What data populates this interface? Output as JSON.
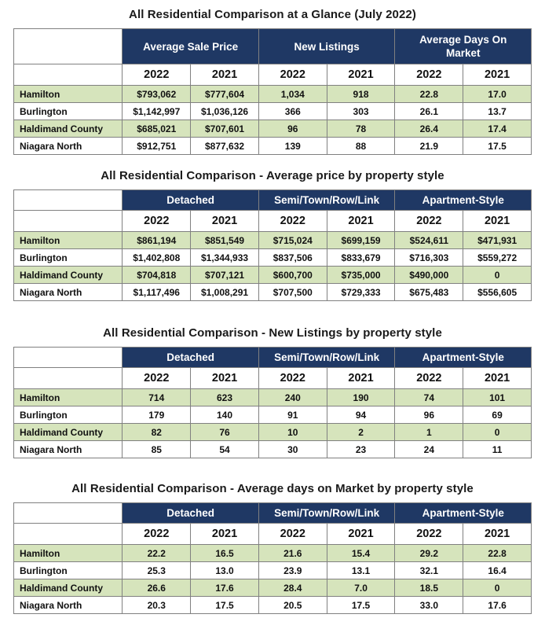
{
  "colors": {
    "header_bg": "#1f3864",
    "header_text": "#ffffff",
    "row_highlight_bg": "#d6e4bc",
    "row_plain_bg": "#ffffff",
    "border": "#808080"
  },
  "tables": [
    {
      "title": "All Residential Comparison at a Glance (July 2022)",
      "groups": [
        "Average Sale Price",
        "New Listings",
        "Average Days On Market"
      ],
      "years": [
        "2022",
        "2021",
        "2022",
        "2021",
        "2022",
        "2021"
      ],
      "rows": [
        {
          "label": "Hamilton",
          "values": [
            "$793,062",
            "$777,604",
            "1,034",
            "918",
            "22.8",
            "17.0"
          ]
        },
        {
          "label": "Burlington",
          "values": [
            "$1,142,997",
            "$1,036,126",
            "366",
            "303",
            "26.1",
            "13.7"
          ]
        },
        {
          "label": "Haldimand County",
          "values": [
            "$685,021",
            "$707,601",
            "96",
            "78",
            "26.4",
            "17.4"
          ]
        },
        {
          "label": "Niagara North",
          "values": [
            "$912,751",
            "$877,632",
            "139",
            "88",
            "21.9",
            "17.5"
          ]
        }
      ]
    },
    {
      "title": "All Residential Comparison - Average price by property style",
      "groups": [
        "Detached",
        "Semi/Town/Row/Link",
        "Apartment-Style"
      ],
      "years": [
        "2022",
        "2021",
        "2022",
        "2021",
        "2022",
        "2021"
      ],
      "rows": [
        {
          "label": "Hamilton",
          "values": [
            "$861,194",
            "$851,549",
            "$715,024",
            "$699,159",
            "$524,611",
            "$471,931"
          ]
        },
        {
          "label": "Burlington",
          "values": [
            "$1,402,808",
            "$1,344,933",
            "$837,506",
            "$833,679",
            "$716,303",
            "$559,272"
          ]
        },
        {
          "label": "Haldimand County",
          "values": [
            "$704,818",
            "$707,121",
            "$600,700",
            "$735,000",
            "$490,000",
            "0"
          ]
        },
        {
          "label": "Niagara North",
          "values": [
            "$1,117,496",
            "$1,008,291",
            "$707,500",
            "$729,333",
            "$675,483",
            "$556,605"
          ]
        }
      ]
    },
    {
      "title": "All Residential Comparison - New Listings by property style",
      "groups": [
        "Detached",
        "Semi/Town/Row/Link",
        "Apartment-Style"
      ],
      "years": [
        "2022",
        "2021",
        "2022",
        "2021",
        "2022",
        "2021"
      ],
      "rows": [
        {
          "label": "Hamilton",
          "values": [
            "714",
            "623",
            "240",
            "190",
            "74",
            "101"
          ]
        },
        {
          "label": "Burlington",
          "values": [
            "179",
            "140",
            "91",
            "94",
            "96",
            "69"
          ]
        },
        {
          "label": "Haldimand County",
          "values": [
            "82",
            "76",
            "10",
            "2",
            "1",
            "0"
          ]
        },
        {
          "label": "Niagara North",
          "values": [
            "85",
            "54",
            "30",
            "23",
            "24",
            "11"
          ]
        }
      ]
    },
    {
      "title": "All Residential Comparison - Average days on Market by property style",
      "groups": [
        "Detached",
        "Semi/Town/Row/Link",
        "Apartment-Style"
      ],
      "years": [
        "2022",
        "2021",
        "2022",
        "2021",
        "2022",
        "2021"
      ],
      "rows": [
        {
          "label": "Hamilton",
          "values": [
            "22.2",
            "16.5",
            "21.6",
            "15.4",
            "29.2",
            "22.8"
          ]
        },
        {
          "label": "Burlington",
          "values": [
            "25.3",
            "13.0",
            "23.9",
            "13.1",
            "32.1",
            "16.4"
          ]
        },
        {
          "label": "Haldimand County",
          "values": [
            "26.6",
            "17.6",
            "28.4",
            "7.0",
            "18.5",
            "0"
          ]
        },
        {
          "label": "Niagara North",
          "values": [
            "20.3",
            "17.5",
            "20.5",
            "17.5",
            "33.0",
            "17.6"
          ]
        }
      ]
    }
  ]
}
